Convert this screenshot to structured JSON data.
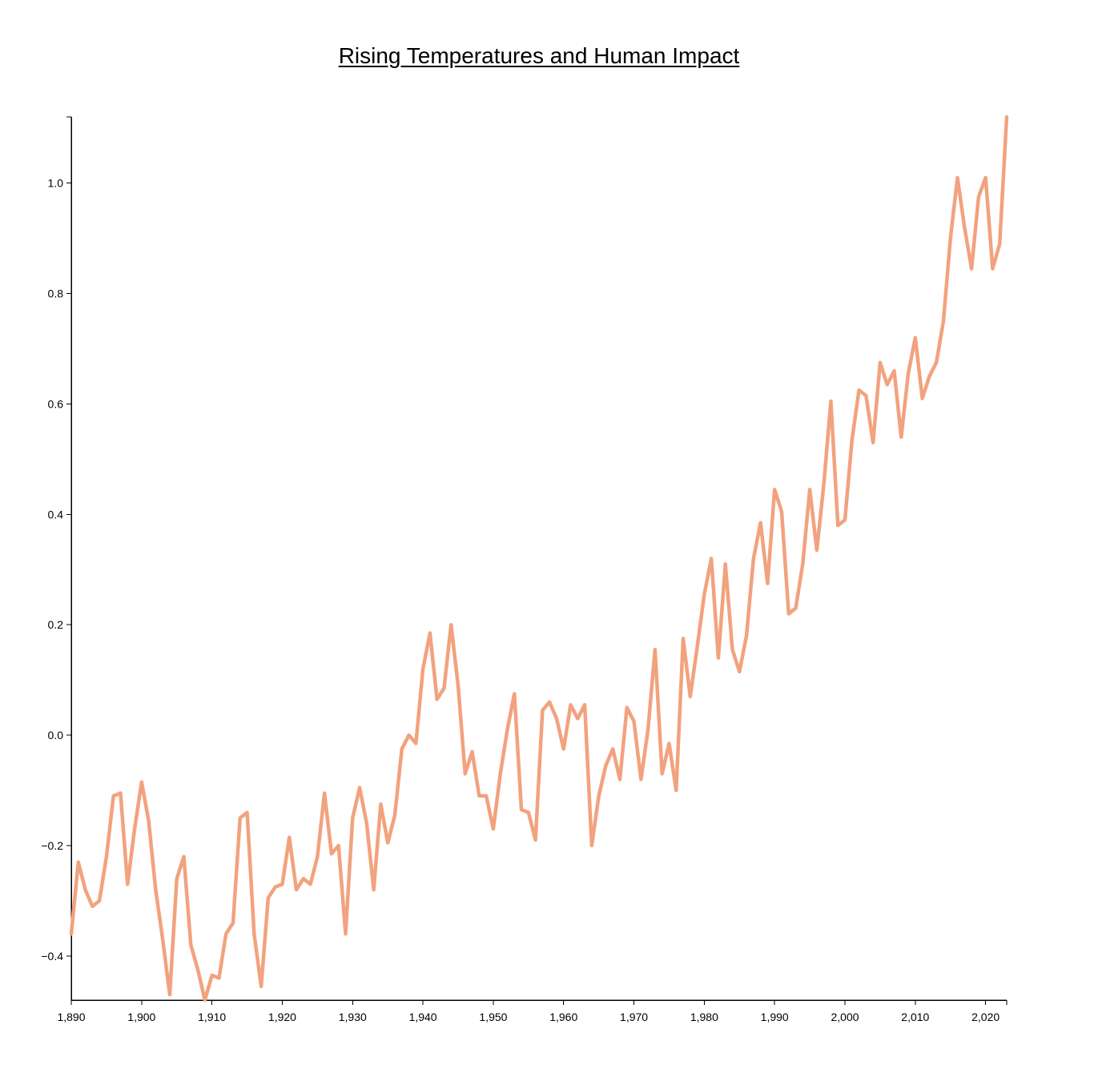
{
  "chart_data": {
    "type": "line",
    "title": "Rising Temperatures and Human Impact",
    "xlabel": "",
    "ylabel": "",
    "xlim": [
      1890,
      2023
    ],
    "ylim": [
      -0.48,
      1.12
    ],
    "x_ticks": [
      1890,
      1900,
      1910,
      1920,
      1930,
      1940,
      1950,
      1960,
      1970,
      1980,
      1990,
      2000,
      2010,
      2020
    ],
    "x_tick_labels": [
      "1,890",
      "1,900",
      "1,910",
      "1,920",
      "1,930",
      "1,940",
      "1,950",
      "1,960",
      "1,970",
      "1,980",
      "1,990",
      "2,000",
      "2,010",
      "2,020"
    ],
    "y_ticks": [
      -0.4,
      -0.2,
      0.0,
      0.2,
      0.4,
      0.6,
      0.8,
      1.0
    ],
    "y_tick_labels": [
      "−0.4",
      "−0.2",
      "0.0",
      "0.2",
      "0.4",
      "0.6",
      "0.8",
      "1.0"
    ],
    "grid": false,
    "line_color": "#f2a27e",
    "x": [
      1890,
      1891,
      1892,
      1893,
      1894,
      1895,
      1896,
      1897,
      1898,
      1899,
      1900,
      1901,
      1902,
      1903,
      1904,
      1905,
      1906,
      1907,
      1908,
      1909,
      1910,
      1911,
      1912,
      1913,
      1914,
      1915,
      1916,
      1917,
      1918,
      1919,
      1920,
      1921,
      1922,
      1923,
      1924,
      1925,
      1926,
      1927,
      1928,
      1929,
      1930,
      1931,
      1932,
      1933,
      1934,
      1935,
      1936,
      1937,
      1938,
      1939,
      1940,
      1941,
      1942,
      1943,
      1944,
      1945,
      1946,
      1947,
      1948,
      1949,
      1950,
      1951,
      1952,
      1953,
      1954,
      1955,
      1956,
      1957,
      1958,
      1959,
      1960,
      1961,
      1962,
      1963,
      1964,
      1965,
      1966,
      1967,
      1968,
      1969,
      1970,
      1971,
      1972,
      1973,
      1974,
      1975,
      1976,
      1977,
      1978,
      1979,
      1980,
      1981,
      1982,
      1983,
      1984,
      1985,
      1986,
      1987,
      1988,
      1989,
      1990,
      1991,
      1992,
      1993,
      1994,
      1995,
      1996,
      1997,
      1998,
      1999,
      2000,
      2001,
      2002,
      2003,
      2004,
      2005,
      2006,
      2007,
      2008,
      2009,
      2010,
      2011,
      2012,
      2013,
      2014,
      2015,
      2016,
      2017,
      2018,
      2019,
      2020,
      2021,
      2022,
      2023
    ],
    "series": [
      {
        "values": [
          -0.36,
          -0.23,
          -0.28,
          -0.31,
          -0.3,
          -0.22,
          -0.11,
          -0.105,
          -0.27,
          -0.17,
          -0.085,
          -0.155,
          -0.28,
          -0.37,
          -0.47,
          -0.26,
          -0.22,
          -0.38,
          -0.425,
          -0.48,
          -0.435,
          -0.44,
          -0.36,
          -0.34,
          -0.15,
          -0.14,
          -0.36,
          -0.455,
          -0.295,
          -0.275,
          -0.27,
          -0.185,
          -0.28,
          -0.26,
          -0.27,
          -0.22,
          -0.105,
          -0.215,
          -0.2,
          -0.36,
          -0.15,
          -0.095,
          -0.16,
          -0.28,
          -0.125,
          -0.195,
          -0.145,
          -0.025,
          0.0,
          -0.015,
          0.12,
          0.185,
          0.065,
          0.085,
          0.2,
          0.09,
          -0.07,
          -0.03,
          -0.11,
          -0.11,
          -0.17,
          -0.07,
          0.01,
          0.075,
          -0.135,
          -0.14,
          -0.19,
          0.045,
          0.06,
          0.03,
          -0.025,
          0.055,
          0.03,
          0.055,
          -0.2,
          -0.11,
          -0.055,
          -0.025,
          -0.08,
          0.05,
          0.025,
          -0.08,
          0.01,
          0.155,
          -0.07,
          -0.015,
          -0.1,
          0.175,
          0.07,
          0.16,
          0.255,
          0.32,
          0.14,
          0.31,
          0.155,
          0.115,
          0.18,
          0.32,
          0.385,
          0.275,
          0.445,
          0.405,
          0.22,
          0.23,
          0.31,
          0.445,
          0.335,
          0.455,
          0.605,
          0.38,
          0.39,
          0.535,
          0.625,
          0.615,
          0.53,
          0.675,
          0.635,
          0.66,
          0.54,
          0.655,
          0.72,
          0.61,
          0.65,
          0.675,
          0.75,
          0.9,
          1.01,
          0.92,
          0.845,
          0.975,
          1.01,
          0.845,
          0.89,
          1.12
        ]
      }
    ]
  }
}
